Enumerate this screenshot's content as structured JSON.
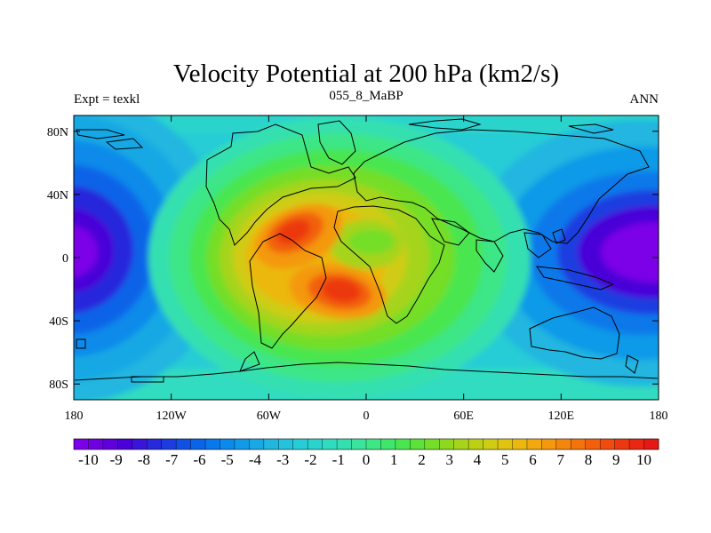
{
  "chart_data": {
    "type": "heatmap",
    "title": "Velocity Potential at 200 hPa (km2/s)",
    "left_string": "Expt = texkl",
    "center_string": "055_8_MaBP",
    "right_string": "ANN",
    "x_ticks": [
      {
        "value": -180,
        "label": "180"
      },
      {
        "value": -120,
        "label": "120W"
      },
      {
        "value": -60,
        "label": "60W"
      },
      {
        "value": 0,
        "label": "0"
      },
      {
        "value": 60,
        "label": "60E"
      },
      {
        "value": 120,
        "label": "120E"
      },
      {
        "value": 180,
        "label": "180"
      }
    ],
    "y_ticks": [
      {
        "value": 80,
        "label": "80N"
      },
      {
        "value": 40,
        "label": "40N"
      },
      {
        "value": 0,
        "label": "0"
      },
      {
        "value": -40,
        "label": "40S"
      },
      {
        "value": -80,
        "label": "80S"
      }
    ],
    "xlim": [
      -180,
      180
    ],
    "ylim": [
      -90,
      90
    ],
    "colorbar": {
      "levels": [
        -10,
        -9.5,
        -9,
        -8.5,
        -8,
        -7.5,
        -7,
        -6.5,
        -6,
        -5.5,
        -5,
        -4.5,
        -4,
        -3.5,
        -3,
        -2.5,
        -2,
        -1.5,
        -1,
        -0.5,
        0,
        0.5,
        1,
        1.5,
        2,
        2.5,
        3,
        3.5,
        4,
        4.5,
        5,
        5.5,
        6,
        6.5,
        7,
        7.5,
        8,
        8.5,
        9,
        9.5,
        10
      ],
      "labels": [
        "-10",
        "-9",
        "-8",
        "-7",
        "-6",
        "-5",
        "-4",
        "-3",
        "-2",
        "-1",
        "0",
        "1",
        "2",
        "3",
        "4",
        "5",
        "6",
        "7",
        "8",
        "9",
        "10"
      ],
      "colors": [
        "#7b00e8",
        "#6f00e0",
        "#5f00dc",
        "#4a00d8",
        "#3a14d8",
        "#2828dc",
        "#1c3ce0",
        "#1050e4",
        "#0a64e8",
        "#0878ea",
        "#0a8aea",
        "#109ae8",
        "#18a8e4",
        "#20b6e0",
        "#24c2dc",
        "#26ccd6",
        "#2ad4cc",
        "#30dcc0",
        "#34e0b0",
        "#3ae49c",
        "#3ee686",
        "#40e66c",
        "#4ae650",
        "#5ce238",
        "#74de28",
        "#8ed820",
        "#a6d41a",
        "#bcd016",
        "#d0cc14",
        "#e0c412",
        "#ecb810",
        "#f2a80e",
        "#f4980e",
        "#f4860c",
        "#f4740c",
        "#f2600c",
        "#f04c0e",
        "#ec3810",
        "#e82812",
        "#e41814"
      ]
    },
    "field_centers": [
      {
        "name": "pacific-minimum-west",
        "lon": -180,
        "lat": 2,
        "value": -10
      },
      {
        "name": "pacific-minimum-east",
        "lon": 148,
        "lat": 0,
        "value": -10
      },
      {
        "name": "atlantic-maximum-north",
        "lon": -30,
        "lat": 12,
        "value": 9
      },
      {
        "name": "atlantic-maximum-south",
        "lon": -12,
        "lat": -20,
        "value": 9
      }
    ]
  }
}
